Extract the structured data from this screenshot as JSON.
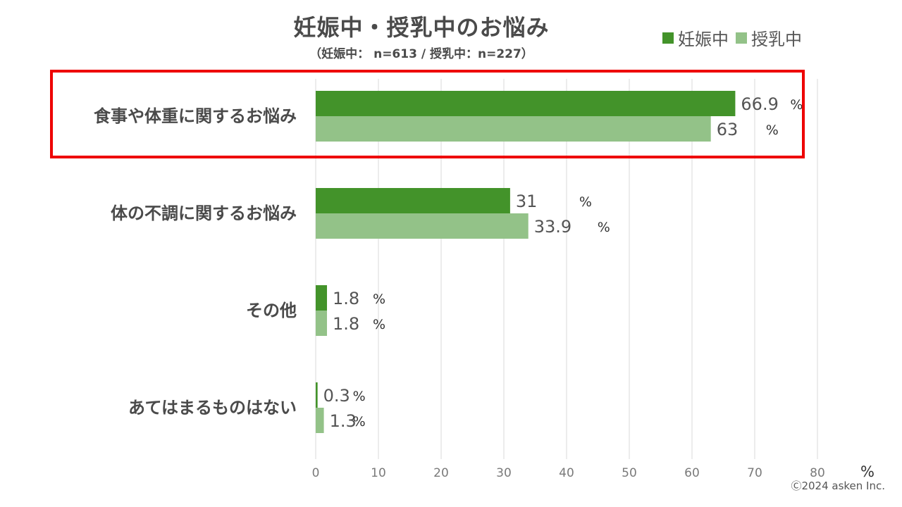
{
  "chart_data": {
    "type": "bar",
    "orientation": "horizontal",
    "title": "妊娠中・授乳中のお悩み",
    "subtitle": "（妊娠中： n=613 / 授乳中：n=227）",
    "categories": [
      "食事や体重に関するお悩み",
      "体の不調に関するお悩み",
      "その他",
      "あてはまるものはない"
    ],
    "series": [
      {
        "name": "妊娠中",
        "color": "#43932a",
        "values": [
          66.9,
          31,
          1.8,
          0.3
        ],
        "labels": [
          "66.9",
          "31",
          "1.8",
          "0.3"
        ]
      },
      {
        "name": "授乳中",
        "color": "#93c288",
        "values": [
          63,
          33.9,
          1.8,
          1.3
        ],
        "labels": [
          "63",
          "33.9",
          "1.8",
          "1.3"
        ]
      }
    ],
    "value_unit": "%",
    "xlim": [
      0,
      80
    ],
    "xticks": [
      "0",
      "10",
      "20",
      "30",
      "40",
      "50",
      "60",
      "70",
      "80"
    ],
    "xlabel": "%",
    "grid": true,
    "legend_position": "top-right",
    "highlighted_category": "食事や体重に関するお悩み",
    "highlight_color": "#ee0000"
  },
  "copyright": "Ⓒ2024 asken Inc."
}
